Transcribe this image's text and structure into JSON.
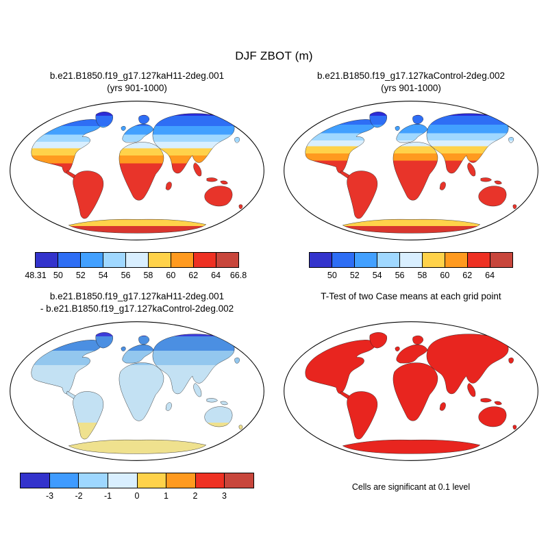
{
  "figure": {
    "title": "DJF ZBOT (m)",
    "background": "#ffffff"
  },
  "chart_data": [
    {
      "type": "map",
      "projection": "robinson-world",
      "title": "b.e21.B1850.f19_g17.127kaH11-2deg.001",
      "subtitle": "(yrs 901-1000)",
      "land_bands": [
        {
          "until": 0.12,
          "color": "#2b2bd6"
        },
        {
          "until": 0.19,
          "color": "#2e6ef5"
        },
        {
          "until": 0.25,
          "color": "#42a0ff"
        },
        {
          "until": 0.3,
          "color": "#a0d8ff"
        },
        {
          "until": 0.345,
          "color": "#d9efff"
        },
        {
          "until": 0.395,
          "color": "#ffd24a"
        },
        {
          "until": 0.45,
          "color": "#ff9a1f"
        },
        {
          "until": 0.84,
          "color": "#e8342a"
        },
        {
          "until": 0.885,
          "color": "#ffd24a"
        },
        {
          "until": 1.0,
          "color": "#d8362e"
        }
      ],
      "colorbar": {
        "colors": [
          "#3333cc",
          "#2e6ef5",
          "#42a0ff",
          "#a0d8ff",
          "#d9efff",
          "#ffd24a",
          "#ff9a1f",
          "#ee3123",
          "#c8463c"
        ],
        "tick_labels": [
          "48.31",
          "50",
          "52",
          "54",
          "56",
          "58",
          "60",
          "62",
          "64",
          "66.8"
        ],
        "include_end_ticks": true
      }
    },
    {
      "type": "map",
      "projection": "robinson-world",
      "title": "b.e21.B1850.f19_g17.127kaControl-2deg.002",
      "subtitle": "(yrs 901-1000)",
      "land_bands": [
        {
          "until": 0.12,
          "color": "#2b2bd6"
        },
        {
          "until": 0.18,
          "color": "#2e6ef5"
        },
        {
          "until": 0.24,
          "color": "#42a0ff"
        },
        {
          "until": 0.29,
          "color": "#a0d8ff"
        },
        {
          "until": 0.33,
          "color": "#d9efff"
        },
        {
          "until": 0.38,
          "color": "#ffd24a"
        },
        {
          "until": 0.43,
          "color": "#ff9a1f"
        },
        {
          "until": 0.84,
          "color": "#e8342a"
        },
        {
          "until": 0.885,
          "color": "#ffd24a"
        },
        {
          "until": 1.0,
          "color": "#d8362e"
        }
      ],
      "colorbar": {
        "colors": [
          "#3333cc",
          "#2e6ef5",
          "#42a0ff",
          "#a0d8ff",
          "#d9efff",
          "#ffd24a",
          "#ff9a1f",
          "#ee3123",
          "#c8463c"
        ],
        "tick_labels": [
          "50",
          "52",
          "54",
          "56",
          "58",
          "60",
          "62",
          "64"
        ],
        "include_end_ticks": false
      }
    },
    {
      "type": "map",
      "projection": "robinson-world",
      "title": "b.e21.B1850.f19_g17.127kaH11-2deg.001",
      "subtitle": "- b.e21.B1850.f19_g17.127kaControl-2deg.002",
      "land_bands": [
        {
          "until": 0.12,
          "color": "#3c3cd9"
        },
        {
          "until": 0.22,
          "color": "#4b8fe2"
        },
        {
          "until": 0.32,
          "color": "#93c7ee"
        },
        {
          "until": 0.72,
          "color": "#c3e1f3"
        },
        {
          "until": 1.0,
          "color": "#efe18e"
        }
      ],
      "colorbar": {
        "colors": [
          "#3333cc",
          "#3f9bff",
          "#9ed7ff",
          "#d9efff",
          "#ffd24a",
          "#ff9a1f",
          "#ee3123",
          "#c8463c"
        ],
        "tick_labels": [
          "-3",
          "-2",
          "-1",
          "0",
          "1",
          "2",
          "3"
        ],
        "include_end_ticks": false
      }
    },
    {
      "type": "map",
      "projection": "robinson-world",
      "title": "T-Test of two Case means at each grid point",
      "subtitle": "",
      "land_solid": "#e8251f",
      "caption": "Cells are significant at 0.1 level"
    }
  ]
}
